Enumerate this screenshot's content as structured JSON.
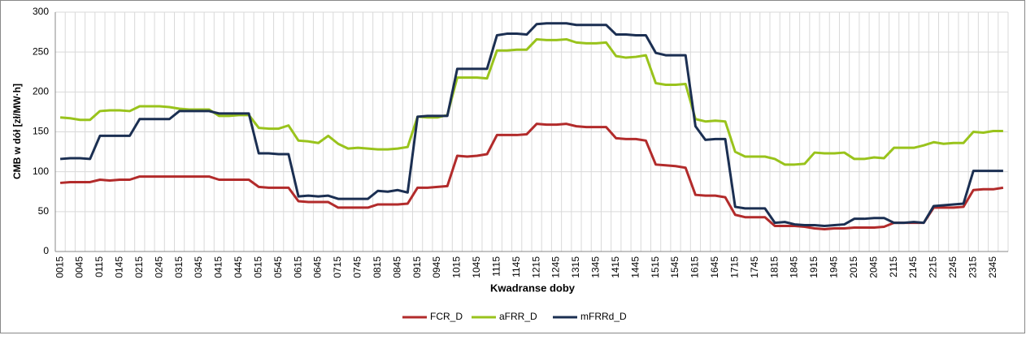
{
  "chart_data": {
    "type": "line",
    "y_label": "CMB w dół [zł/MW·h]",
    "x_label": "Kwadranse doby",
    "categories": [
      "0015",
      null,
      "0045",
      null,
      "0115",
      null,
      "0145",
      null,
      "0215",
      null,
      "0245",
      null,
      "0315",
      null,
      "0345",
      null,
      "0415",
      null,
      "0445",
      null,
      "0515",
      null,
      "0545",
      null,
      "0615",
      null,
      "0645",
      null,
      "0715",
      null,
      "0745",
      null,
      "0815",
      null,
      "0845",
      null,
      "0915",
      null,
      "0945",
      null,
      "1015",
      null,
      "1045",
      null,
      "1115",
      null,
      "1145",
      null,
      "1215",
      null,
      "1245",
      null,
      "1315",
      null,
      "1345",
      null,
      "1415",
      null,
      "1445",
      null,
      "1515",
      null,
      "1545",
      null,
      "1615",
      null,
      "1645",
      null,
      "1715",
      null,
      "1745",
      null,
      "1815",
      null,
      "1845",
      null,
      "1915",
      null,
      "1945",
      null,
      "2015",
      null,
      "2045",
      null,
      "2115",
      null,
      "2145",
      null,
      "2215",
      null,
      "2245",
      null,
      "2315",
      null,
      "2345",
      null
    ],
    "series": [
      {
        "name": "FCR_D",
        "color": "#b22b2b",
        "values": [
          86,
          87,
          87,
          87,
          90,
          89,
          90,
          90,
          94,
          94,
          94,
          94,
          94,
          94,
          94,
          94,
          90,
          90,
          90,
          90,
          81,
          80,
          80,
          80,
          63,
          62,
          62,
          62,
          55,
          55,
          55,
          55,
          59,
          59,
          59,
          60,
          80,
          80,
          81,
          82,
          120,
          119,
          120,
          122,
          146,
          146,
          146,
          147,
          160,
          159,
          159,
          160,
          157,
          156,
          156,
          156,
          142,
          141,
          141,
          139,
          109,
          108,
          107,
          105,
          71,
          70,
          70,
          68,
          46,
          43,
          43,
          43,
          32,
          32,
          32,
          31,
          29,
          28,
          29,
          29,
          30,
          30,
          30,
          31,
          36,
          36,
          36,
          36,
          55,
          55,
          55,
          56,
          77,
          78,
          78,
          80
        ]
      },
      {
        "name": "aFRR_D",
        "color": "#99c31c",
        "values": [
          168,
          167,
          165,
          165,
          176,
          177,
          177,
          176,
          182,
          182,
          182,
          181,
          179,
          178,
          178,
          178,
          170,
          170,
          171,
          171,
          155,
          154,
          154,
          158,
          139,
          138,
          136,
          145,
          135,
          129,
          130,
          129,
          128,
          128,
          129,
          131,
          169,
          168,
          168,
          171,
          218,
          218,
          218,
          217,
          252,
          252,
          253,
          253,
          266,
          265,
          265,
          266,
          262,
          261,
          261,
          262,
          245,
          243,
          244,
          246,
          211,
          209,
          209,
          210,
          166,
          163,
          164,
          163,
          125,
          119,
          119,
          119,
          116,
          109,
          109,
          110,
          124,
          123,
          123,
          124,
          116,
          116,
          118,
          117,
          130,
          130,
          130,
          133,
          137,
          135,
          136,
          136,
          150,
          149,
          151,
          151
        ]
      },
      {
        "name": "mFRRd_D",
        "color": "#1b2f52",
        "values": [
          116,
          117,
          117,
          116,
          145,
          145,
          145,
          145,
          166,
          166,
          166,
          166,
          176,
          176,
          176,
          176,
          173,
          173,
          173,
          173,
          123,
          123,
          122,
          122,
          69,
          70,
          69,
          70,
          66,
          66,
          66,
          66,
          76,
          75,
          77,
          74,
          169,
          170,
          170,
          170,
          229,
          229,
          229,
          229,
          271,
          273,
          273,
          272,
          285,
          286,
          286,
          286,
          284,
          284,
          284,
          284,
          272,
          272,
          271,
          271,
          249,
          246,
          246,
          246,
          157,
          140,
          141,
          141,
          56,
          54,
          54,
          54,
          36,
          37,
          34,
          33,
          33,
          32,
          33,
          34,
          41,
          41,
          42,
          42,
          36,
          36,
          37,
          36,
          57,
          58,
          59,
          60,
          101,
          101,
          101,
          101
        ]
      }
    ],
    "ylim": [
      0,
      300
    ],
    "yticks": [
      0,
      50,
      100,
      150,
      200,
      250,
      300
    ],
    "grid": true,
    "legend": "bottom"
  }
}
